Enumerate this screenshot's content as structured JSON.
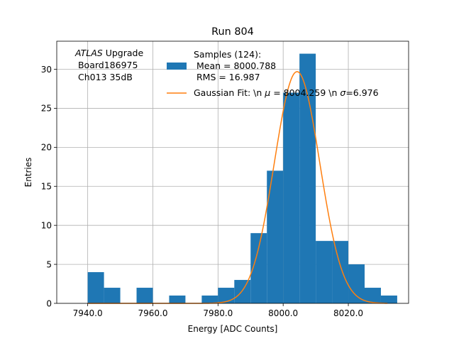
{
  "chart_data": {
    "type": "bar",
    "title": "Run 804",
    "xlabel": "Energy [ADC Counts]",
    "ylabel": "Entries",
    "xlim": [
      7930.5,
      8038.5
    ],
    "ylim": [
      0,
      33.6
    ],
    "x_ticks": [
      7940,
      7960,
      7980,
      8000,
      8020
    ],
    "x_tick_labels": [
      "7940.0",
      "7960.0",
      "7980.0",
      "8000.0",
      "8020.0"
    ],
    "y_ticks": [
      0,
      5,
      10,
      15,
      20,
      25,
      30
    ],
    "y_tick_labels": [
      "0",
      "5",
      "10",
      "15",
      "20",
      "25",
      "30"
    ],
    "grid": true,
    "bin_edges": [
      7940,
      7945,
      7950,
      7955,
      7960,
      7965,
      7970,
      7975,
      7980,
      7985,
      7990,
      7995,
      8000,
      8005,
      8010,
      8015,
      8020,
      8025,
      8030,
      8035
    ],
    "counts": [
      4,
      2,
      0,
      2,
      0,
      1,
      0,
      1,
      2,
      3,
      9,
      17,
      27,
      32,
      8,
      8,
      5,
      2,
      1
    ],
    "bar_color": "#1f77b4",
    "series": [
      {
        "name": "Samples (124):\n Mean = 8000.788\n RMS = 16.987",
        "kind": "histogram",
        "color": "#1f77b4"
      },
      {
        "name": "Gaussian Fit: \\n $\\mu$ = 8004.259 \\n $\\sigma$=6.976",
        "kind": "line",
        "color": "#ff7f0e"
      }
    ],
    "fit": {
      "mu": 8004.259,
      "sigma": 6.976,
      "amplitude": 29.7,
      "x_range": [
        7940,
        8032
      ]
    },
    "legend_position": "upper-center",
    "legend_lines": [
      "Samples (124):",
      " Mean = 8000.788",
      " RMS = 16.987"
    ],
    "fit_label_prefix": "Gaussian Fit: \\n ",
    "fit_label_mid": " = 8004.259 \\n ",
    "fit_label_suffix": "=6.976",
    "mu_symbol": "μ",
    "sigma_symbol": "σ",
    "annotation_lines": [
      "ATLAS Upgrade",
      " Board186975",
      " Ch013 35dB"
    ],
    "annotation_italic": "ATLAS",
    "annotation_rest": " Upgrade",
    "fit_color": "#ff7f0e",
    "grid_color": "#b0b0b0"
  }
}
